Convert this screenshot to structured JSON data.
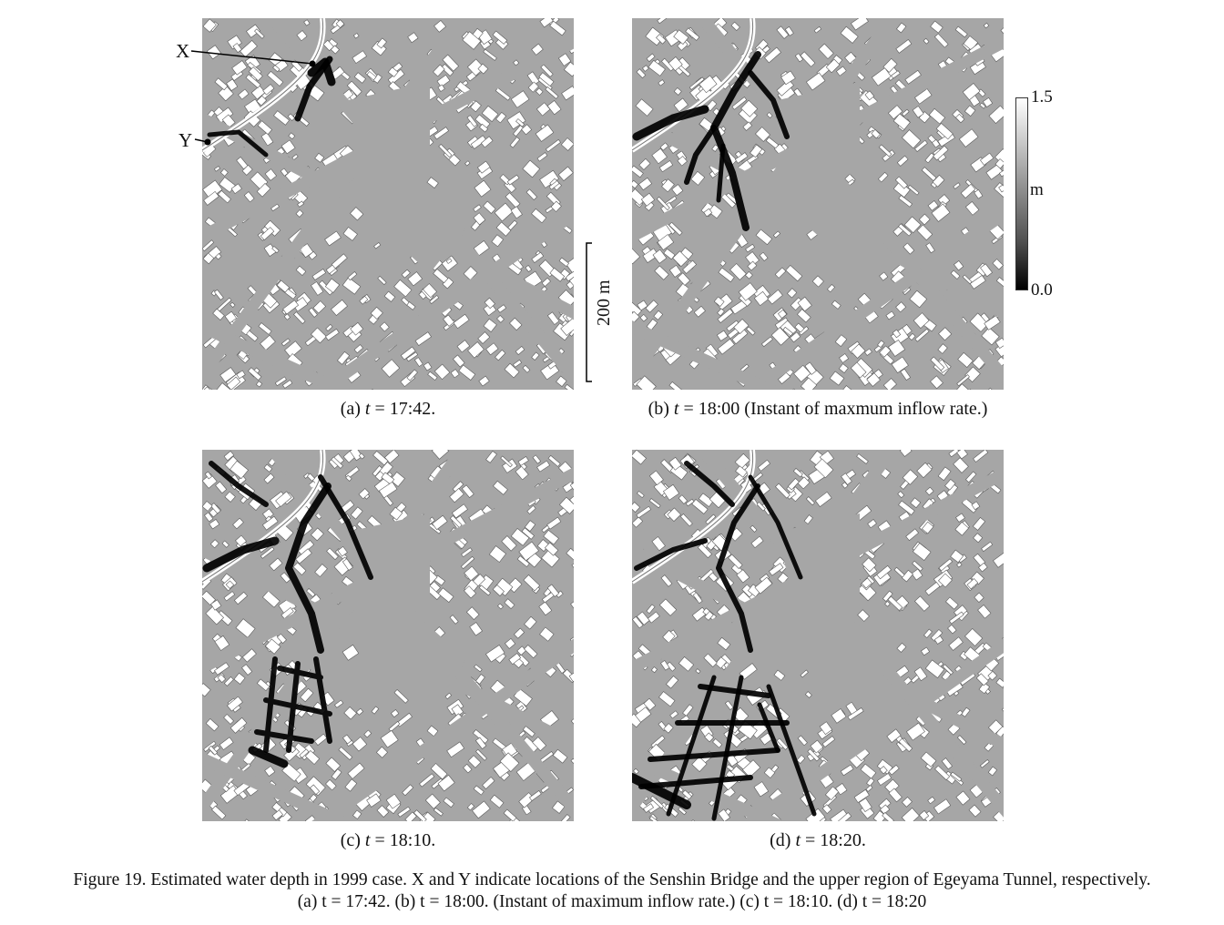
{
  "panels": [
    {
      "id": "a",
      "caption_prefix": "(a) ",
      "caption_var": "t",
      "caption_rest": " = 17:42.",
      "flood_level": 1
    },
    {
      "id": "b",
      "caption_prefix": "(b) ",
      "caption_var": "t",
      "caption_rest": " = 18:00 (Instant of maxmum inflow rate.)",
      "flood_level": 2
    },
    {
      "id": "c",
      "caption_prefix": "(c) ",
      "caption_var": "t",
      "caption_rest": " = 18:10.",
      "flood_level": 3
    },
    {
      "id": "d",
      "caption_prefix": "(d) ",
      "caption_var": "t",
      "caption_rest": " = 18:20.",
      "flood_level": 4
    }
  ],
  "markers": {
    "x": "X",
    "y": "Y"
  },
  "scale_bar": {
    "label": "200 m"
  },
  "colorbar": {
    "max": "1.5",
    "unit": "m",
    "min": "0.0",
    "colors": [
      "#ffffff",
      "#a0a0a0",
      "#505050",
      "#000000"
    ]
  },
  "figure_caption": {
    "line1": "Figure 19. Estimated water depth in 1999 case. X and Y indicate locations of the Senshin Bridge and the upper region of Egeyama Tunnel, respectively.",
    "line2": "(a) t = 17:42. (b) t = 18:00. (Instant of maximum inflow rate.) (c) t = 18:10. (d) t = 18:20"
  },
  "colors": {
    "ground": "#a6a6a6",
    "building": "#ffffff",
    "outline": "#5a5a5a",
    "water": "#000000"
  }
}
